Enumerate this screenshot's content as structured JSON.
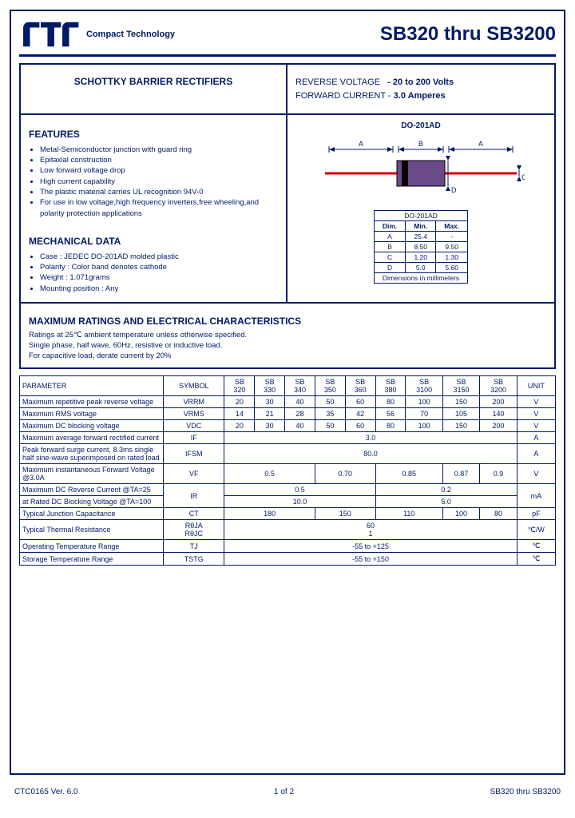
{
  "header": {
    "company": "Compact Technology",
    "title": "SB320 thru SB3200"
  },
  "box1": {
    "left": "SCHOTTKY BARRIER RECTIFIERS",
    "right_l1a": "REVERSE VOLTAGE",
    "right_l1b": "- 20 to 200 Volts",
    "right_l2a": "FORWARD CURRENT -",
    "right_l2b": "3.0 Amperes"
  },
  "features": {
    "heading": "FEATURES",
    "items": [
      "Metal-Semiconductor junction with guard ring",
      "Epitaxial construction",
      "Low forward voltage drop",
      "High current capability",
      "The plastic material carries UL recognition 94V-0",
      "For use in low voltage,high frequency inverters,free wheeling,and polarity protection applications"
    ]
  },
  "mech": {
    "heading": "MECHANICAL DATA",
    "items": [
      "Case : JEDEC DO-201AD molded plastic",
      "Polarity : Color band denotes cathode",
      "Weight : 1.071grams",
      "Mounting position : Any"
    ]
  },
  "package": {
    "title": "DO-201AD",
    "dim_title": "DO-201AD",
    "cols": [
      "Dim.",
      "Min.",
      "Max."
    ],
    "rows": [
      [
        "A",
        "25.4",
        "-"
      ],
      [
        "B",
        "8.50",
        "9.50"
      ],
      [
        "C",
        "1.20",
        "1.30"
      ],
      [
        "D",
        "5.0",
        "5.60"
      ]
    ],
    "footer": "Dimensions in millimeters"
  },
  "ratings": {
    "heading": "MAXIMUM RATINGS AND ELECTRICAL CHARACTERISTICS",
    "l1": "Ratings at 25℃ ambient temperature unless otherwise specified.",
    "l2": "Single phase, half wave, 60Hz, resistive or inductive load.",
    "l3": "For capacitive load, derate current by 20%"
  },
  "table": {
    "head": [
      "PARAMETER",
      "SYMBOL",
      "SB 320",
      "SB 330",
      "SB 340",
      "SB 350",
      "SB 360",
      "SB 380",
      "SB 3100",
      "SB 3150",
      "SB 3200",
      "UNIT"
    ],
    "rows": [
      {
        "p": "Maximum repetitive peak reverse voltage",
        "s": "VRRM",
        "v": [
          "20",
          "30",
          "40",
          "50",
          "60",
          "80",
          "100",
          "150",
          "200"
        ],
        "u": "V"
      },
      {
        "p": "Maximum RMS voltage",
        "s": "VRMS",
        "v": [
          "14",
          "21",
          "28",
          "35",
          "42",
          "56",
          "70",
          "105",
          "140"
        ],
        "u": "V"
      },
      {
        "p": "Maximum DC blocking voltage",
        "s": "VDC",
        "v": [
          "20",
          "30",
          "40",
          "50",
          "60",
          "80",
          "100",
          "150",
          "200"
        ],
        "u": "V"
      }
    ],
    "r_if": {
      "p": "Maximum average forward rectified current",
      "s": "IF",
      "v": "3.0",
      "u": "A"
    },
    "r_ifsm": {
      "p": "Peak forward surge current, 8.3ms single half sine-wave superimposed on rated load",
      "s": "IFSM",
      "v": "80.0",
      "u": "A"
    },
    "r_vf": {
      "p": "Maximum instantaneous Forward Voltage @3.0A",
      "s": "VF",
      "v": [
        "0.5",
        "0.70",
        "0.85",
        "0.87",
        "0.9"
      ],
      "spans": [
        3,
        2,
        2,
        1,
        1
      ],
      "u": "V"
    },
    "r_ir1": {
      "p": "Maximum DC Reverse Current @TA=25",
      "v": [
        "0.5",
        "0.2"
      ],
      "spans": [
        5,
        4
      ],
      "u": "mA"
    },
    "r_ir2": {
      "p": "at Rated DC Blocking Voltage @TA=100",
      "v": [
        "10.0",
        "5.0"
      ],
      "spans": [
        5,
        4
      ]
    },
    "r_ir_s": "IR",
    "r_ct": {
      "p": "Typical Junction Capacitance",
      "s": "CT",
      "v": [
        "180",
        "150",
        "110",
        "100",
        "80"
      ],
      "spans": [
        3,
        2,
        2,
        1,
        1
      ],
      "u": "pF"
    },
    "r_rth": {
      "p": "Typical Thermal Resistance",
      "s": "RθJA RθJC",
      "v1": "60",
      "v2": "1",
      "u": "℃/W"
    },
    "r_top": {
      "p": "Operating Temperature Range",
      "s": "TJ",
      "v": "-55 to +125",
      "u": "℃"
    },
    "r_tst": {
      "p": "Storage Temperature Range",
      "s": "TSTG",
      "v": "-55 to +150",
      "u": "℃"
    }
  },
  "footer": {
    "left": "CTC0165 Ver. 6.0",
    "center": "1 of 2",
    "right": "SB320 thru SB3200"
  },
  "colors": {
    "ink": "#001a66",
    "red": "#cc0000",
    "pkg_body": "#6b4a8a"
  }
}
